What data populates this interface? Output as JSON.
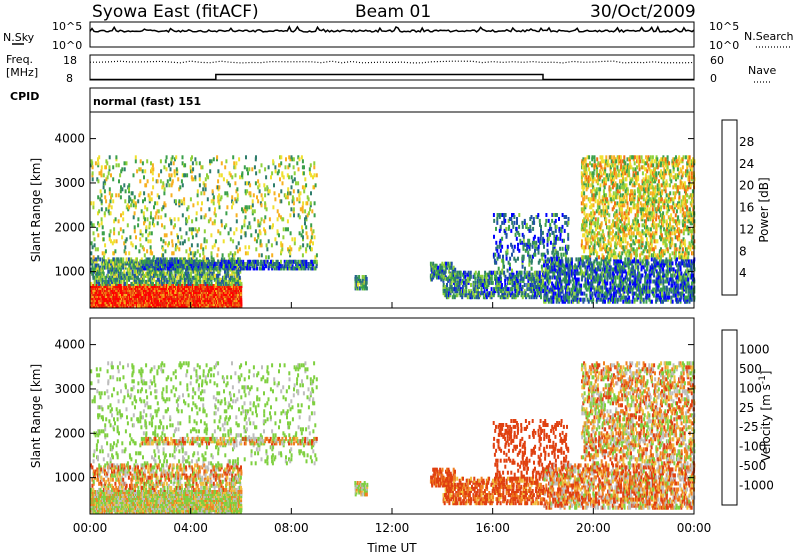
{
  "header": {
    "station": "Syowa East (fitACF)",
    "beam": "Beam 01",
    "date": "30/Oct/2009"
  },
  "param_panel": {
    "nsky_label": "N.Sky",
    "nsearch_label": "N.Search",
    "noise_left_ticks": [
      "10^5",
      "10^0"
    ],
    "noise_right_ticks": [
      "10^5",
      "10^0"
    ],
    "freq_label_1": "Freq.",
    "freq_label_2": "[MHz]",
    "freq_ticks": [
      "18",
      "8"
    ],
    "nave_label": "Nave",
    "nave_ticks": [
      "60",
      "0"
    ],
    "cpid_label": "CPID",
    "cpid_text": "normal (fast) 151",
    "freq_steps": [
      {
        "x_hr": 0.0,
        "mhz": 9
      },
      {
        "x_hr": 5.0,
        "mhz": 11
      },
      {
        "x_hr": 18.0,
        "mhz": 9
      },
      {
        "x_hr": 24.0,
        "mhz": 9
      }
    ]
  },
  "x_axis": {
    "ticks": [
      "00:00",
      "04:00",
      "08:00",
      "12:00",
      "16:00",
      "20:00",
      "00:00"
    ],
    "label": "Time UT"
  },
  "colors": {
    "power": [
      "#0000ff",
      "#1f4fa8",
      "#2e7d6b",
      "#3aa04a",
      "#8fd13a",
      "#f0e030",
      "#f7b020",
      "#f07010",
      "#e03010",
      "#ff0000"
    ],
    "velocity": [
      "#ff0000",
      "#e04010",
      "#f08020",
      "#f0c040",
      "#bdbdbd",
      "#7fd040",
      "#3aa04a",
      "#1f6f8a",
      "#2040c0"
    ]
  },
  "chart_data": [
    {
      "type": "heatmap",
      "panel": "power",
      "ylabel": "Slant Range [km]",
      "ylim": [
        180,
        4600
      ],
      "yticks": [
        "1000",
        "2000",
        "3000",
        "4000"
      ],
      "xlim_hours": [
        0,
        24
      ],
      "colorbar_label": "Power [dB]",
      "colorbar_ticks": [
        "4",
        "8",
        "12",
        "16",
        "20",
        "24",
        "28"
      ],
      "regions": [
        {
          "t0": 0.0,
          "t1": 6.0,
          "r0": 200,
          "r1": 700,
          "density": 0.95,
          "value": 26
        },
        {
          "t0": 0.0,
          "t1": 6.0,
          "r0": 700,
          "r1": 1300,
          "density": 0.5,
          "value": 10
        },
        {
          "t0": 0.0,
          "t1": 9.0,
          "r0": 1300,
          "r1": 3600,
          "density": 0.08,
          "value": 14
        },
        {
          "t0": 2.0,
          "t1": 9.0,
          "r0": 1050,
          "r1": 1250,
          "density": 0.6,
          "value": 6
        },
        {
          "t0": 10.5,
          "t1": 11.0,
          "r0": 600,
          "r1": 900,
          "density": 0.6,
          "value": 10
        },
        {
          "t0": 13.5,
          "t1": 14.5,
          "r0": 800,
          "r1": 1200,
          "density": 0.4,
          "value": 8
        },
        {
          "t0": 14.0,
          "t1": 18.0,
          "r0": 400,
          "r1": 1000,
          "density": 0.45,
          "value": 8
        },
        {
          "t0": 16.0,
          "t1": 19.0,
          "r0": 1000,
          "r1": 2300,
          "density": 0.15,
          "value": 6
        },
        {
          "t0": 18.0,
          "t1": 24.0,
          "r0": 300,
          "r1": 1300,
          "density": 0.4,
          "value": 6
        },
        {
          "t0": 19.5,
          "t1": 24.0,
          "r0": 1300,
          "r1": 3600,
          "density": 0.3,
          "value": 16
        }
      ]
    },
    {
      "type": "heatmap",
      "panel": "velocity",
      "ylabel": "Slant Range [km]",
      "ylim": [
        180,
        4600
      ],
      "yticks": [
        "1000",
        "2000",
        "3000",
        "4000"
      ],
      "xlim_hours": [
        0,
        24
      ],
      "colorbar_label": "Velocity [m s^-1]",
      "colorbar_ticks": [
        "1000",
        "500",
        "100",
        "25",
        "-25",
        "-100",
        "-500",
        "-1000"
      ],
      "regions": [
        {
          "t0": 0.0,
          "t1": 6.0,
          "r0": 200,
          "r1": 700,
          "density": 0.9,
          "value": 80
        },
        {
          "t0": 0.0,
          "t1": 6.0,
          "r0": 700,
          "r1": 1300,
          "density": 0.35,
          "value": 0
        },
        {
          "t0": 0.0,
          "t1": 9.0,
          "r0": 1300,
          "r1": 3600,
          "density": 0.08,
          "value": 200
        },
        {
          "t0": 2.0,
          "t1": 9.0,
          "r0": 1750,
          "r1": 1900,
          "density": 0.5,
          "value": 0
        },
        {
          "t0": 10.5,
          "t1": 11.0,
          "r0": 600,
          "r1": 900,
          "density": 0.6,
          "value": 100
        },
        {
          "t0": 13.5,
          "t1": 14.5,
          "r0": 800,
          "r1": 1200,
          "density": 0.4,
          "value": -200
        },
        {
          "t0": 14.0,
          "t1": 18.0,
          "r0": 400,
          "r1": 1000,
          "density": 0.45,
          "value": -150
        },
        {
          "t0": 16.0,
          "t1": 19.0,
          "r0": 1000,
          "r1": 2300,
          "density": 0.15,
          "value": -300
        },
        {
          "t0": 18.0,
          "t1": 24.0,
          "r0": 300,
          "r1": 1300,
          "density": 0.4,
          "value": -50
        },
        {
          "t0": 19.5,
          "t1": 24.0,
          "r0": 1300,
          "r1": 3600,
          "density": 0.3,
          "value": 0
        }
      ]
    }
  ]
}
